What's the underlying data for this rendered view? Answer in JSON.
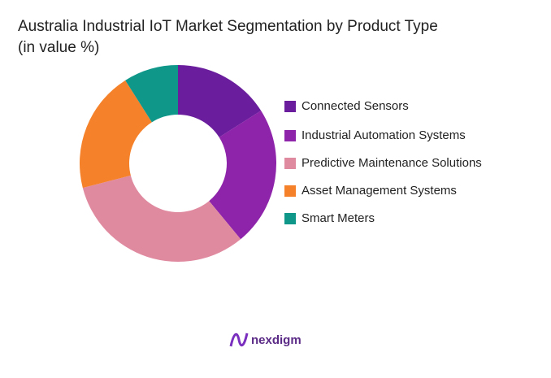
{
  "chart_data": {
    "type": "donut",
    "title": "Australia Industrial IoT Market Segmentation by Product Type\n(in value %)",
    "categories": [
      "Connected Sensors",
      "Industrial Automation Systems",
      "Predictive Maintenance Solutions",
      "Asset Management Systems",
      "Smart Meters"
    ],
    "values": [
      16,
      23,
      32,
      20,
      9
    ],
    "colors": [
      "#6a1d9c",
      "#8e24aa",
      "#e08aa0",
      "#f5822a",
      "#0f978a"
    ],
    "legend": "right"
  },
  "brand": "nexdigm"
}
